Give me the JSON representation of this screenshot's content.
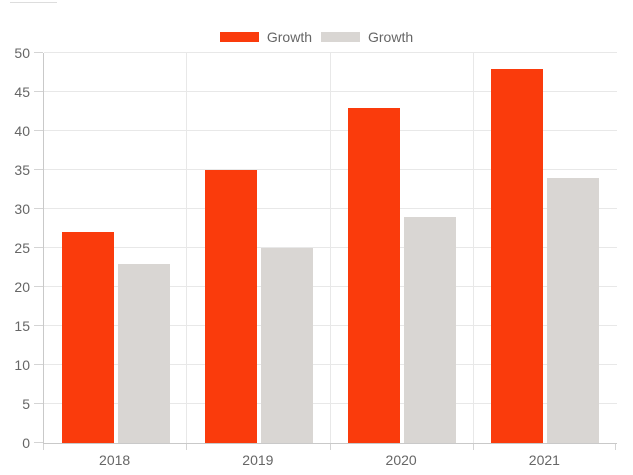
{
  "chart_data": {
    "type": "bar",
    "title": "",
    "xlabel": "",
    "ylabel": "",
    "categories": [
      "2018",
      "2019",
      "2020",
      "2021"
    ],
    "series": [
      {
        "name": "Growth",
        "color": "#fa3b0c",
        "values": [
          27,
          35,
          43,
          48
        ]
      },
      {
        "name": "Growth",
        "color": "#d9d6d3",
        "values": [
          23,
          25,
          29,
          34
        ]
      }
    ],
    "ylim": [
      0,
      50
    ],
    "yticks": [
      0,
      5,
      10,
      15,
      20,
      25,
      30,
      35,
      40,
      45,
      50
    ],
    "grid": true,
    "legend_position": "top-center"
  },
  "legend": {
    "items": [
      {
        "label": "Growth",
        "color": "#fa3b0c"
      },
      {
        "label": "Growth",
        "color": "#d9d6d3"
      }
    ]
  },
  "colors": {
    "background": "#ffffff",
    "grid_line": "#e8e8e8",
    "axis_line": "#c9c9c9",
    "tick_mark": "#d4d4d4",
    "axis_text": "#666666",
    "legend_text": "#666666",
    "edge_fragment": "#dddddd"
  }
}
